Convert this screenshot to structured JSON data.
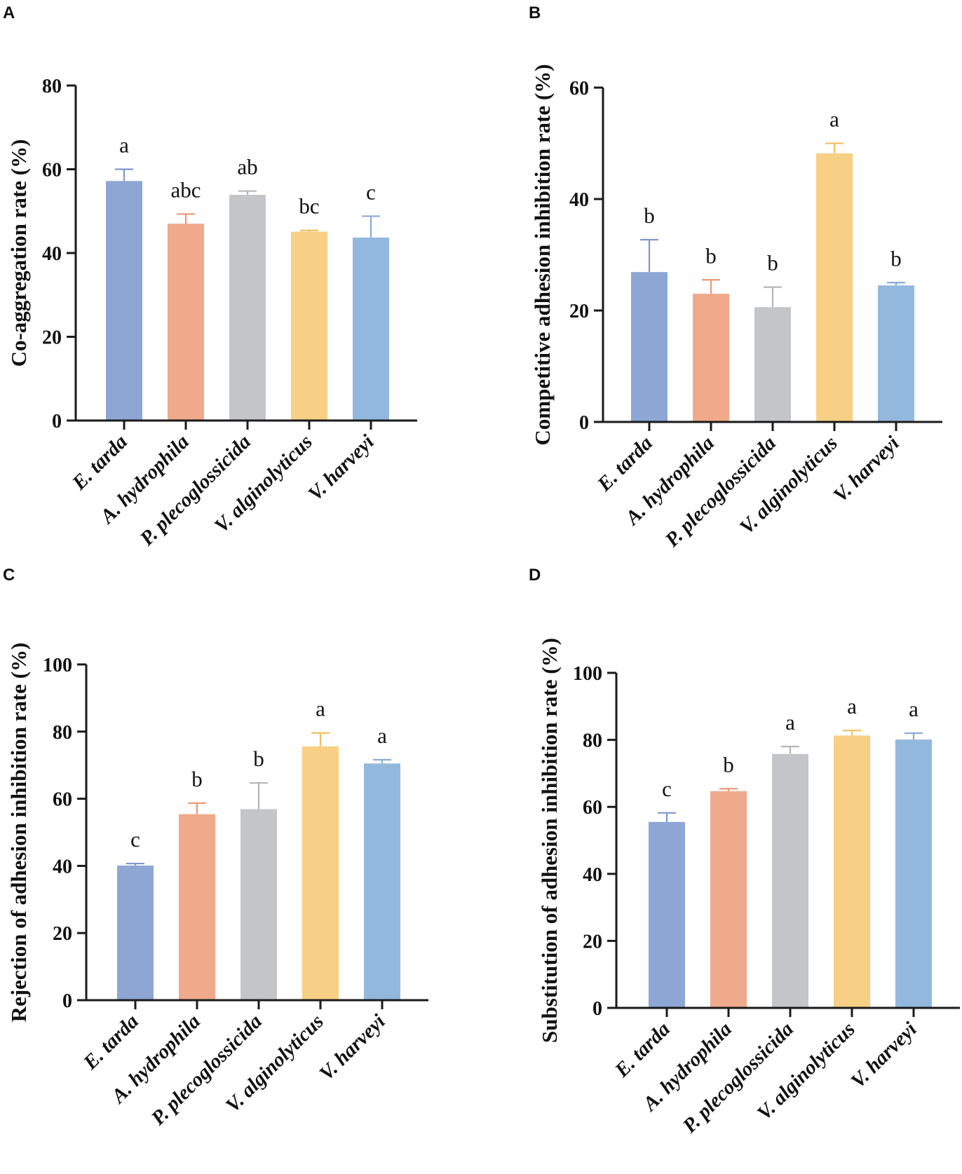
{
  "colors": {
    "bars": [
      "#8ea6d4",
      "#f0a98a",
      "#c3c5c9",
      "#f7d086",
      "#93b8de"
    ],
    "errors": [
      "#7d97cc",
      "#ea9775",
      "#b4b6bb",
      "#f1bf63",
      "#84abd8"
    ],
    "axis": "#1a1a1a"
  },
  "chart_data": [
    {
      "panel": "A",
      "type": "bar",
      "ylabel": "Co-aggregation rate (%)",
      "ylim": [
        0,
        80
      ],
      "yticks": [
        "0",
        "20",
        "40",
        "60",
        "80"
      ],
      "categories": [
        "E. tarda",
        "A. hydrophila",
        "P. plecoglossicida",
        "V. alginolyticus",
        "V. harveyi"
      ],
      "values": [
        57.2,
        47,
        53.9,
        45.1,
        43.7
      ],
      "errors": [
        2.8,
        2.3,
        0.9,
        0.3,
        5.1
      ],
      "significance": [
        "a",
        "abc",
        "ab",
        "bc",
        "c"
      ]
    },
    {
      "panel": "B",
      "type": "bar",
      "ylabel": "Competitive adhesion inhibition rate (%)",
      "ylim": [
        0,
        60
      ],
      "yticks": [
        "0",
        "20",
        "40",
        "60"
      ],
      "categories": [
        "E. tarda",
        "A. hydrophila",
        "P. plecoglossicida",
        "V. alginolyticus",
        "V. harveyi"
      ],
      "values": [
        26.9,
        23,
        20.6,
        48.2,
        24.5
      ],
      "errors": [
        5.8,
        2.5,
        3.6,
        1.8,
        0.5
      ],
      "significance": [
        "b",
        "b",
        "b",
        "a",
        "b"
      ]
    },
    {
      "panel": "C",
      "type": "bar",
      "ylabel": "Rejection of adhesion inhibition rate (%)",
      "ylim": [
        0,
        100
      ],
      "yticks": [
        "0",
        "20",
        "40",
        "60",
        "80",
        "100"
      ],
      "categories": [
        "E. tarda",
        "A. hydrophila",
        "P. plecoglossicida",
        "V. alginolyticus",
        "V. harveyi"
      ],
      "values": [
        40.1,
        55.4,
        56.9,
        75.6,
        70.5
      ],
      "errors": [
        0.6,
        3.3,
        7.8,
        4,
        1.1
      ],
      "significance": [
        "c",
        "b",
        "b",
        "a",
        "a"
      ]
    },
    {
      "panel": "D",
      "type": "bar",
      "ylabel": "Substitution of adhesion inhibition rate (%)",
      "ylim": [
        0,
        100
      ],
      "yticks": [
        "0",
        "20",
        "40",
        "60",
        "80",
        "100"
      ],
      "categories": [
        "E. tarda",
        "A. hydrophila",
        "P. plecoglossicida",
        "V. alginolyticus",
        "V. harveyi"
      ],
      "values": [
        55.5,
        64.7,
        75.8,
        81.3,
        80.1
      ],
      "errors": [
        2.7,
        0.7,
        2.2,
        1.5,
        1.9
      ],
      "significance": [
        "c",
        "b",
        "a",
        "a",
        "a"
      ]
    }
  ]
}
